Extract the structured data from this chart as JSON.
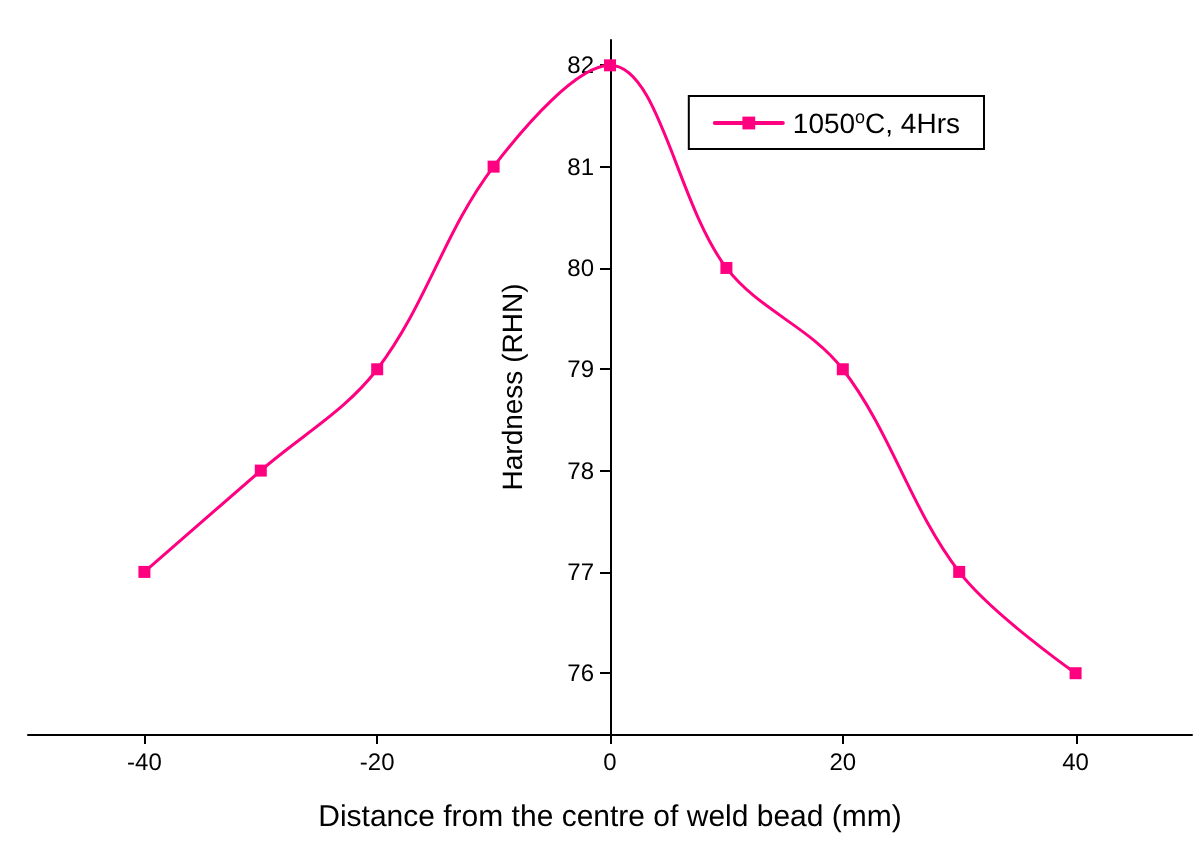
{
  "chart_data": {
    "type": "line",
    "xlabel": "Distance from the centre of weld bead (mm)",
    "ylabel": "Hardness (RHN)",
    "x": [
      -40,
      -30,
      -20,
      -10,
      0,
      10,
      20,
      30,
      40
    ],
    "series": [
      {
        "name": "1050$^{o}$C, 4Hrs",
        "color": "#ff0080",
        "values": [
          77,
          78,
          79,
          81,
          82,
          80,
          79,
          77,
          76
        ]
      }
    ],
    "xlim": [
      -50,
      50
    ],
    "xticks": [
      -40,
      -20,
      0,
      20,
      40
    ],
    "ylim": [
      75.4,
      82.25
    ],
    "yticks": [
      76,
      77,
      78,
      79,
      80,
      81,
      82
    ],
    "grid": false,
    "legend": "top right",
    "marker": "square",
    "line_style": "solid"
  }
}
